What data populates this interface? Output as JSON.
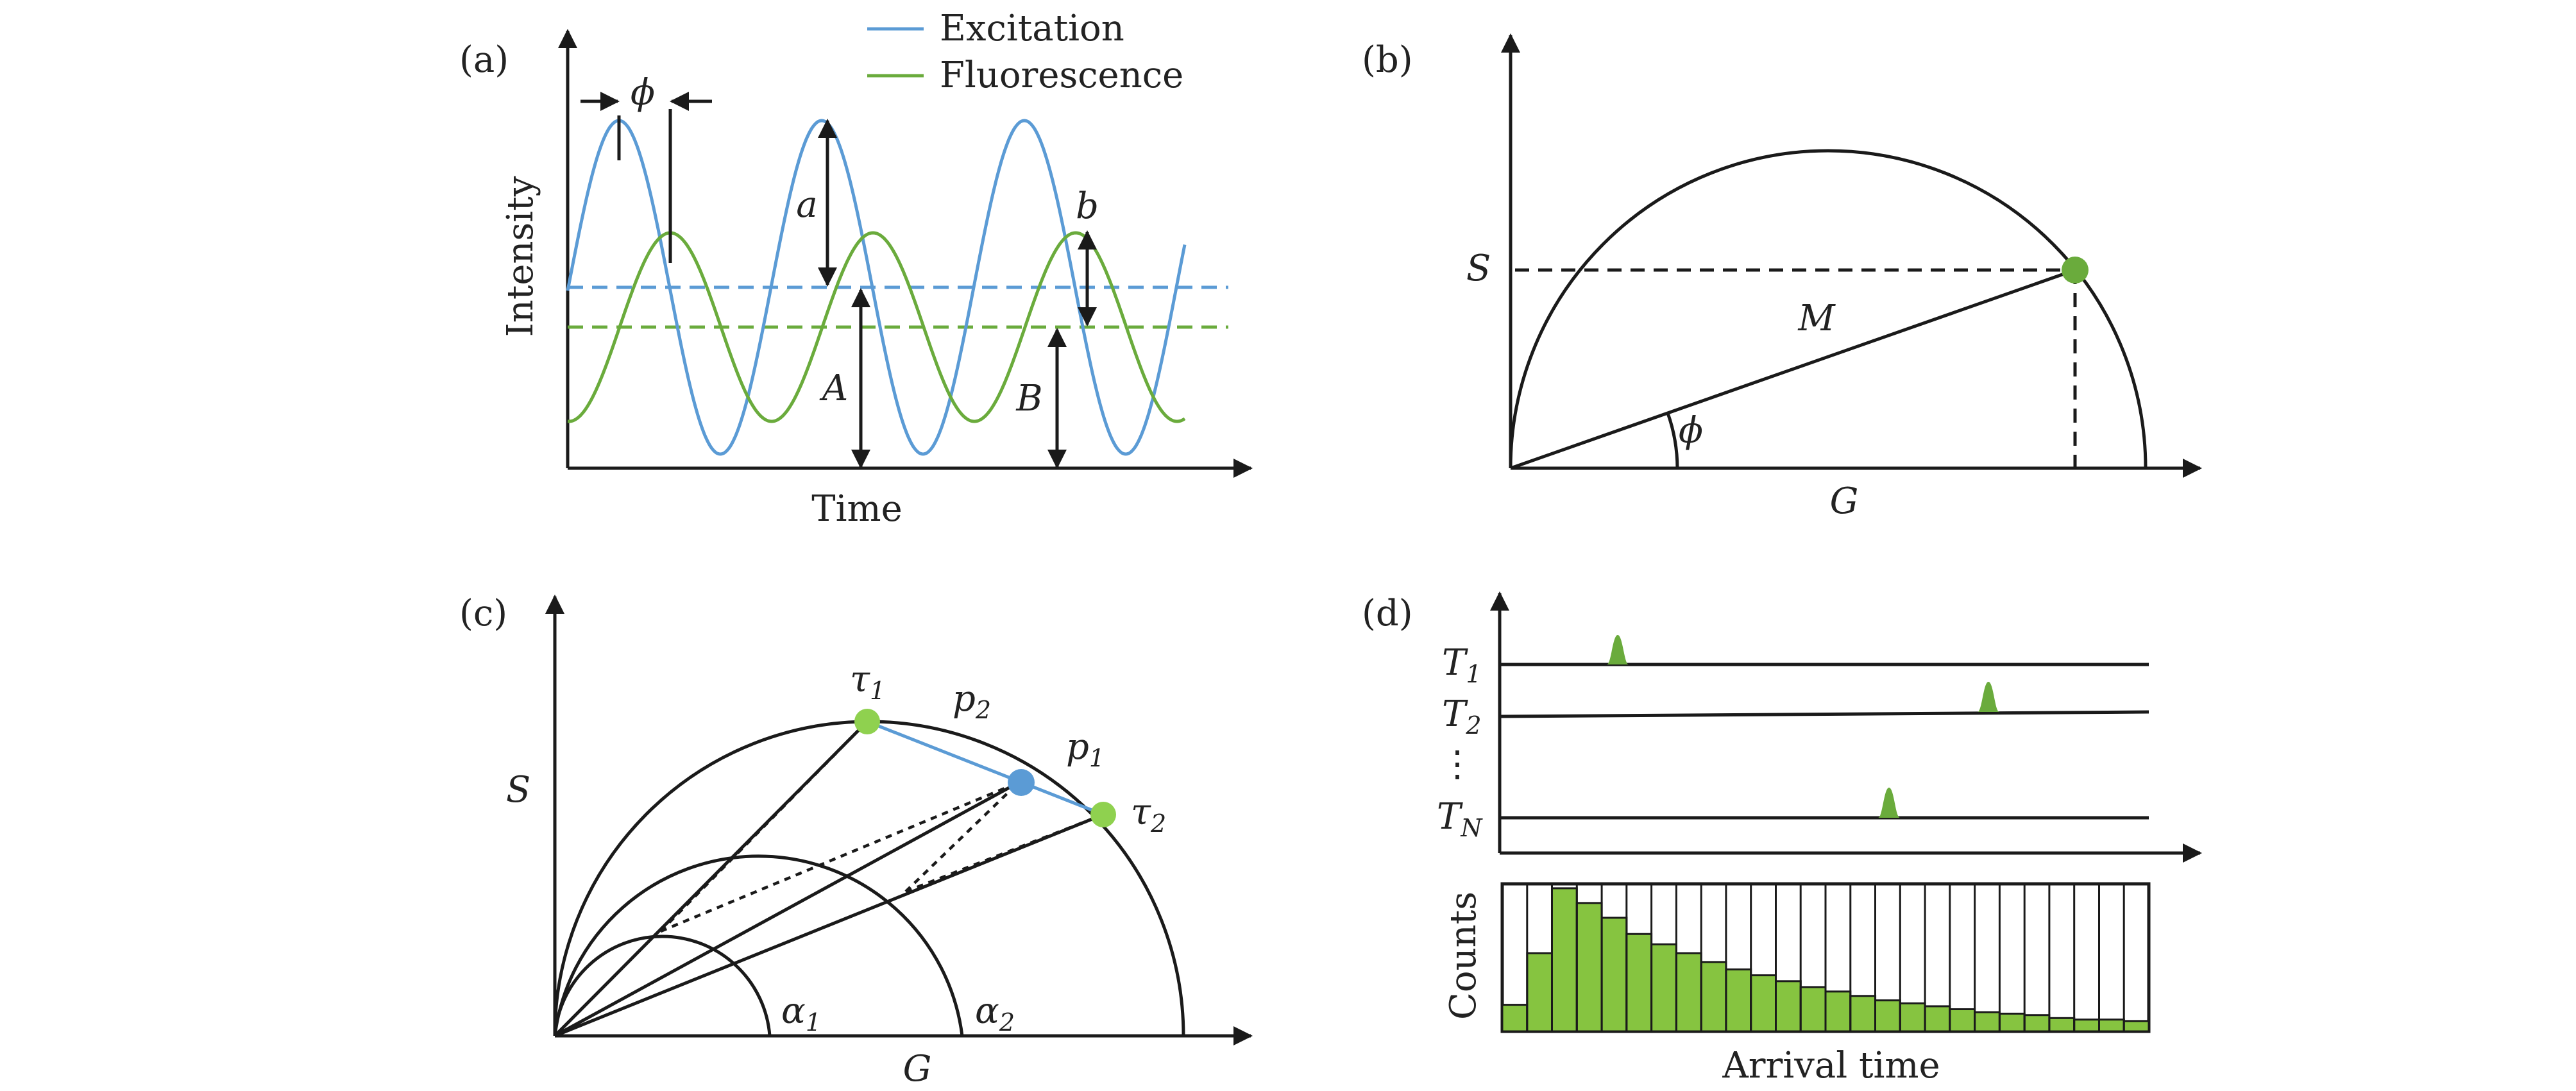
{
  "colors": {
    "excitation": "#5b9bd5",
    "fluorescence": "#6aab3c",
    "light_green": "#8fd14f",
    "histogram_green": "#86c440",
    "ink": "#1a1a1a"
  },
  "panel_a": {
    "tag": "(a)",
    "legend": {
      "excitation": "Excitation",
      "fluorescence": "Fluorescence"
    },
    "xlabel": "Time",
    "ylabel": "Intensity",
    "labels": {
      "phase": "ϕ",
      "a": "a",
      "b": "b",
      "A": "A",
      "B": "B"
    }
  },
  "panel_b": {
    "tag": "(b)",
    "xlabel": "G",
    "ylabel": "S",
    "labels": {
      "M": "M",
      "phase": "ϕ"
    }
  },
  "panel_c": {
    "tag": "(c)",
    "xlabel": "G",
    "ylabel": "S",
    "labels": {
      "tau1": "τ",
      "tau1_sub": "1",
      "tau2": "τ",
      "tau2_sub": "2",
      "p1": "p",
      "p1_sub": "1",
      "p2": "p",
      "p2_sub": "2",
      "alpha1": "α",
      "alpha1_sub": "1",
      "alpha2": "α",
      "alpha2_sub": "2"
    }
  },
  "panel_d": {
    "tag": "(d)",
    "rows": [
      {
        "label": "T",
        "sub": "1"
      },
      {
        "label": "T",
        "sub": "2"
      },
      {
        "label": "⋮",
        "sub": ""
      },
      {
        "label": "T",
        "sub": "N"
      }
    ],
    "histogram_ylabel": "Counts",
    "histogram_xlabel": "Arrival time",
    "histogram_counts": [
      0.18,
      0.53,
      0.97,
      0.87,
      0.77,
      0.66,
      0.59,
      0.53,
      0.47,
      0.42,
      0.38,
      0.34,
      0.3,
      0.27,
      0.24,
      0.21,
      0.19,
      0.17,
      0.15,
      0.13,
      0.12,
      0.11,
      0.09,
      0.08,
      0.08,
      0.07
    ]
  }
}
